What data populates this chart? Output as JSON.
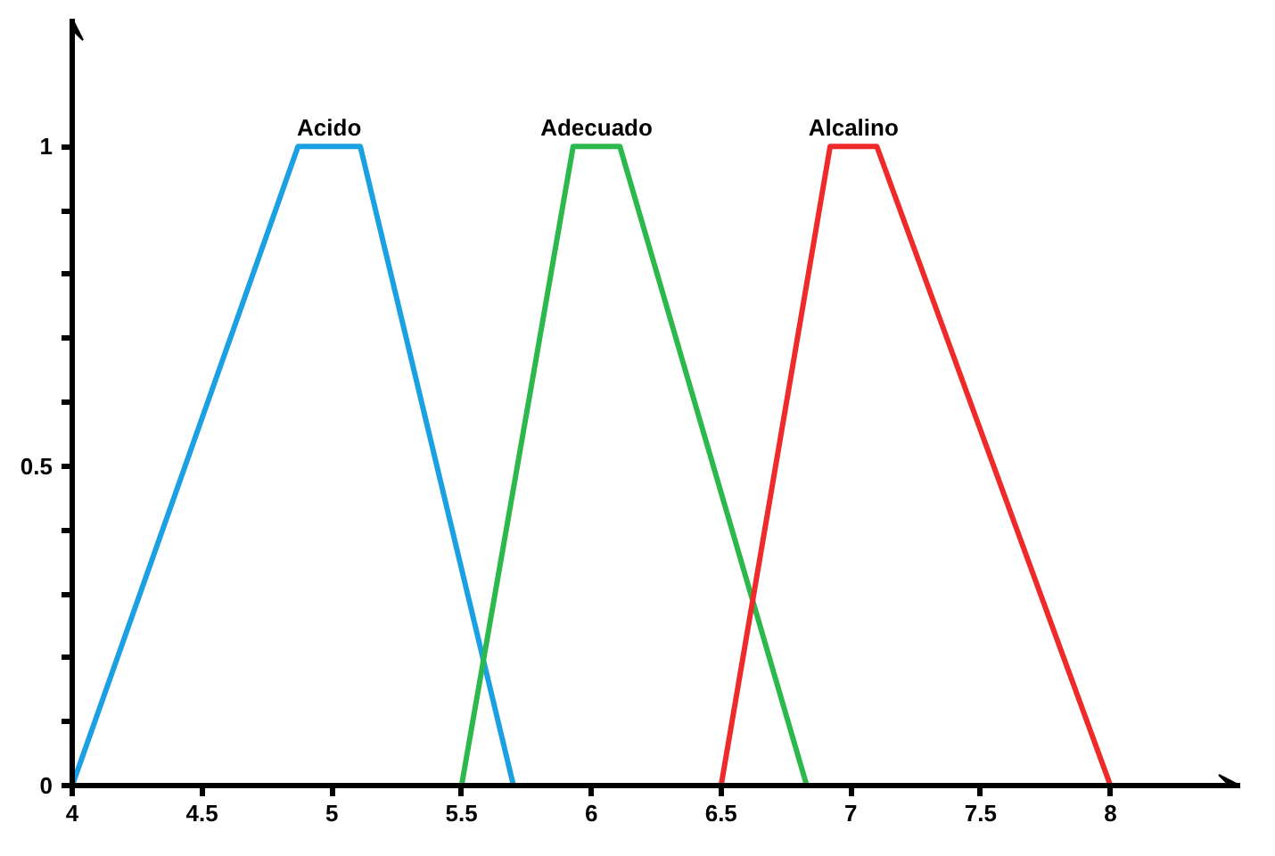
{
  "chart_data": {
    "type": "line",
    "xlim": [
      4,
      8.5
    ],
    "ylim": [
      0,
      1.2
    ],
    "xticks": [
      4,
      4.5,
      5,
      5.5,
      6,
      6.5,
      7,
      7.5,
      8
    ],
    "yticks": [
      0,
      {
        "value": 0.1,
        "label": null
      },
      {
        "value": 0.2,
        "label": null
      },
      {
        "value": 0.3,
        "label": null
      },
      {
        "value": 0.4,
        "label": null
      },
      0.5,
      {
        "value": 0.6,
        "label": null
      },
      {
        "value": 0.7,
        "label": null
      },
      {
        "value": 0.8,
        "label": null
      },
      {
        "value": 0.9,
        "label": null
      },
      1
    ],
    "grid": false,
    "marker": "none",
    "line_style": "solid",
    "series": [
      {
        "name": "Acido",
        "color": "#1ba1e2",
        "x": [
          4,
          4.87,
          5.11,
          5.7
        ],
        "values": [
          0,
          1,
          1,
          0
        ]
      },
      {
        "name": "Adecuado",
        "color": "#2db84d",
        "x": [
          5.5,
          5.93,
          6.11,
          6.83
        ],
        "values": [
          0,
          1,
          1,
          0
        ]
      },
      {
        "name": "Alcalino",
        "color": "#ee2a2a",
        "x": [
          6.5,
          6.92,
          7.1,
          8
        ],
        "values": [
          0,
          1,
          1,
          0
        ]
      }
    ]
  }
}
